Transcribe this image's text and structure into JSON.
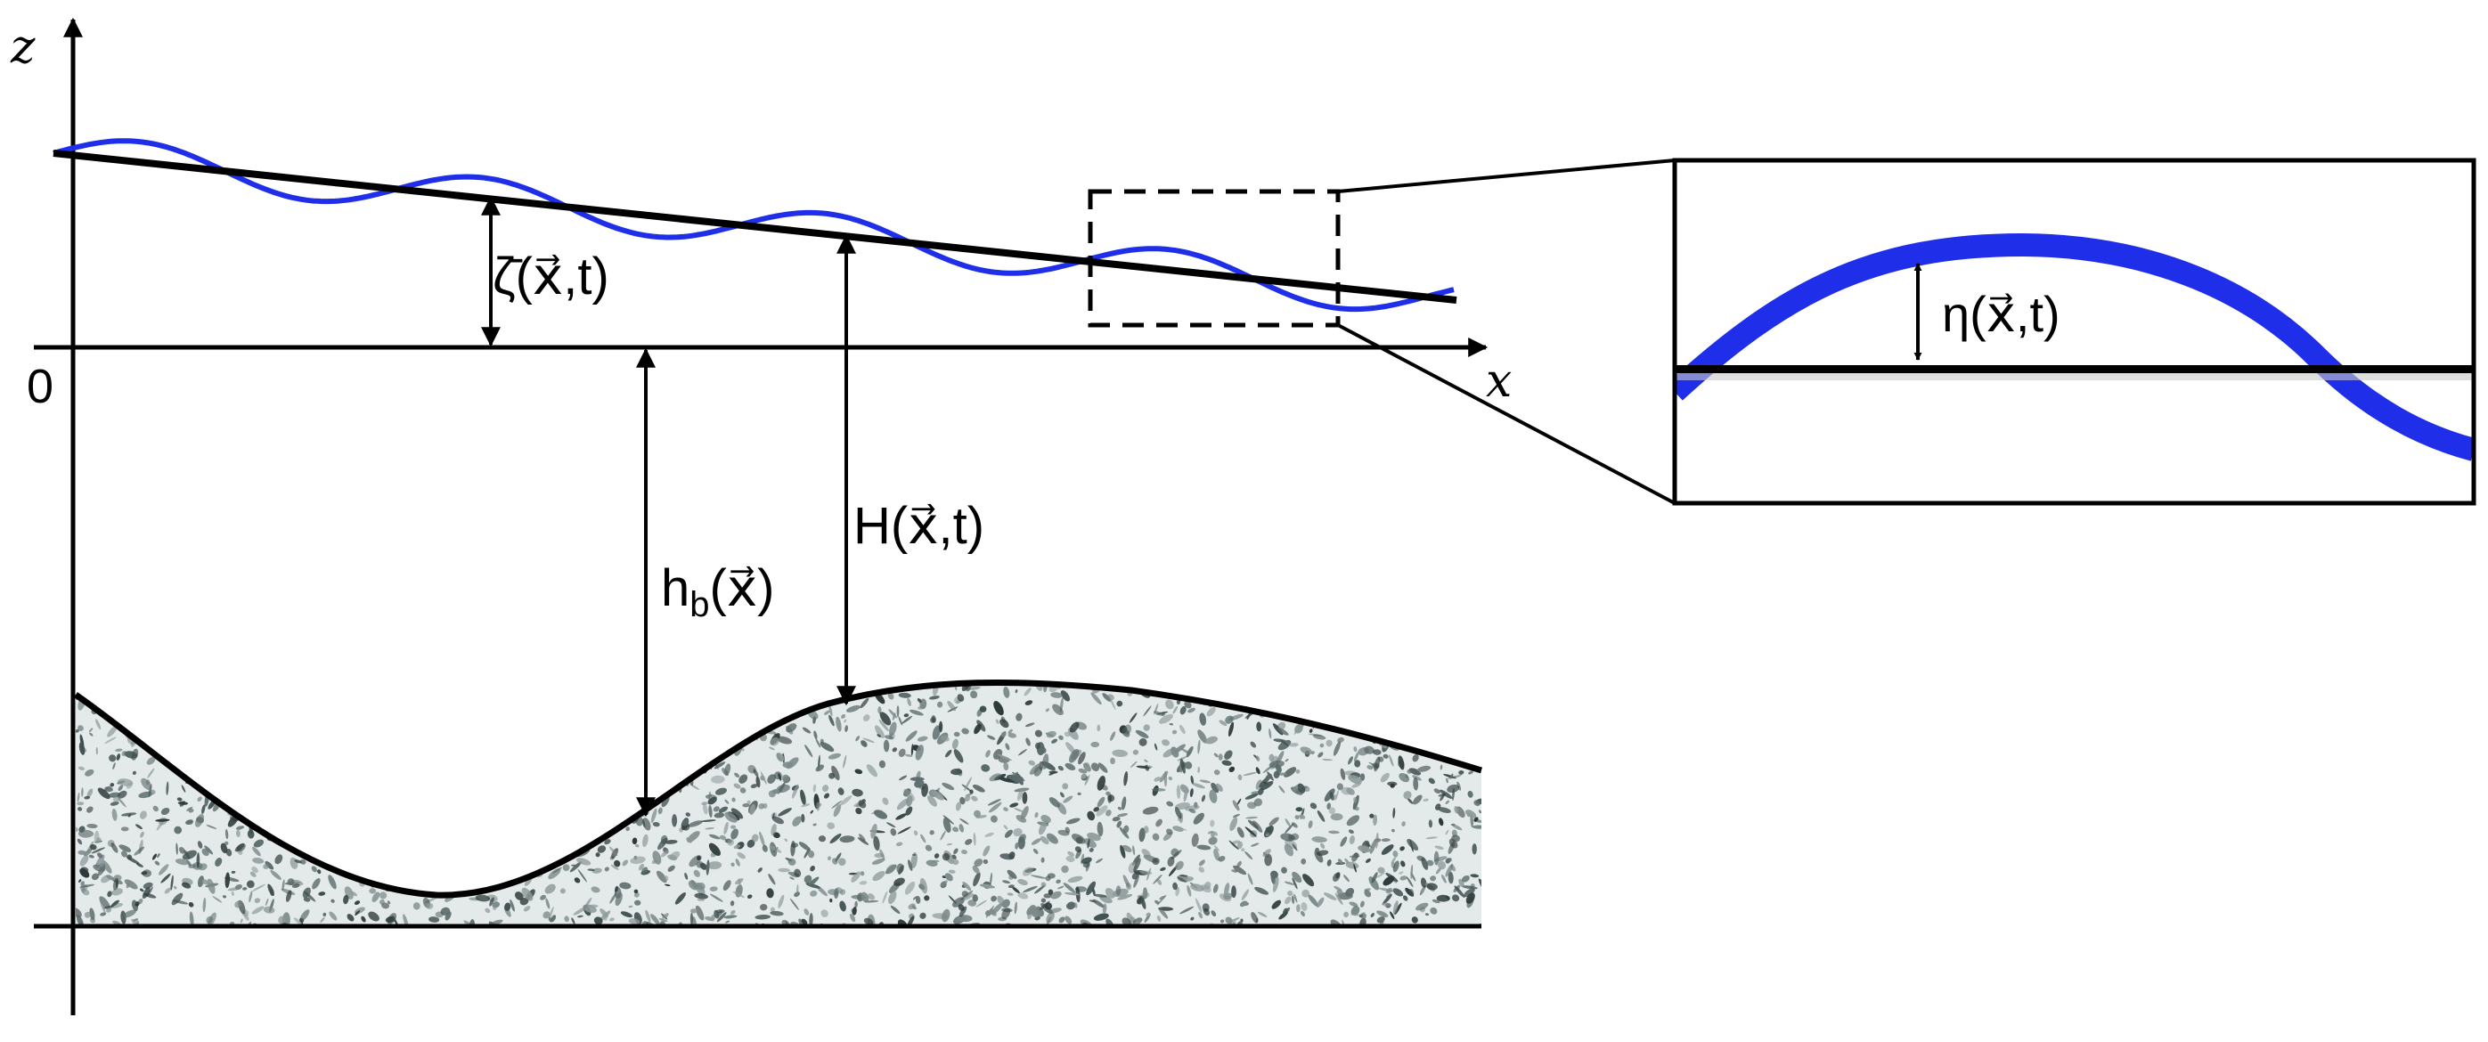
{
  "axes": {
    "z_label": "z",
    "x_label": "x",
    "origin_label": "0"
  },
  "labels": {
    "mean_surface": "ζ̄(x⃗,t)",
    "total_depth": "H(x⃗,t)",
    "bed_depth_base": "h",
    "bed_depth_sub": "b",
    "bed_depth_arg": "(x⃗)",
    "wave_elevation": "η(x⃗,t)"
  },
  "colors": {
    "wave": "#1f2ee8",
    "line": "#000000",
    "sediment": "#4a5a5a",
    "background": "#ffffff"
  }
}
